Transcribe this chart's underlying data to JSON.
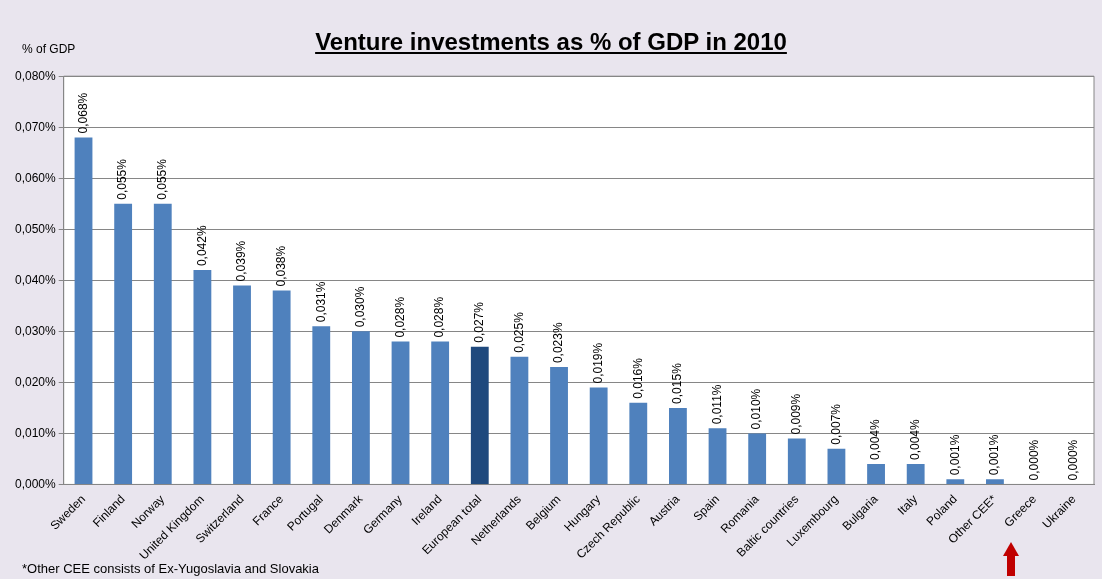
{
  "chart_data": {
    "type": "bar",
    "title": "Venture investments as % of GDP in 2010",
    "ylabel": "% of GDP",
    "annotations": [
      "*Other CEE consists of Ex-Yugoslavia  and Slovakia"
    ],
    "categories": [
      "Sweden",
      "Finland",
      "Norway",
      "United Kingdom",
      "Switzerland",
      "France",
      "Portugal",
      "Denmark",
      "Germany",
      "Ireland",
      "European total",
      "Netherlands",
      "Belgium",
      "Hungary",
      "Czech Republic",
      "Austria",
      "Spain",
      "Romania",
      "Baltic countries",
      "Luxembourg",
      "Bulgaria",
      "Italy",
      "Poland",
      "Other CEE*",
      "Greece",
      "Ukraine"
    ],
    "values": [
      0.068,
      0.055,
      0.055,
      0.042,
      0.039,
      0.038,
      0.031,
      0.03,
      0.028,
      0.028,
      0.027,
      0.025,
      0.023,
      0.019,
      0.016,
      0.015,
      0.011,
      0.01,
      0.009,
      0.007,
      0.004,
      0.004,
      0.001,
      0.001,
      0.0,
      0.0
    ],
    "value_labels": [
      "0,068%",
      "0,055%",
      "0,055%",
      "0,042%",
      "0,039%",
      "0,038%",
      "0,031%",
      "0,030%",
      "0,028%",
      "0,028%",
      "0,027%",
      "0,025%",
      "0,023%",
      "0,019%",
      "0,016%",
      "0,015%",
      "0,011%",
      "0,010%",
      "0,009%",
      "0,007%",
      "0,004%",
      "0,004%",
      "0,001%",
      "0,001%",
      "0,000%",
      "0,000%"
    ],
    "colors": [
      "#4f81bd",
      "#4f81bd",
      "#4f81bd",
      "#4f81bd",
      "#4f81bd",
      "#4f81bd",
      "#4f81bd",
      "#4f81bd",
      "#4f81bd",
      "#4f81bd",
      "#1f497d",
      "#4f81bd",
      "#4f81bd",
      "#4f81bd",
      "#4f81bd",
      "#4f81bd",
      "#4f81bd",
      "#4f81bd",
      "#4f81bd",
      "#4f81bd",
      "#4f81bd",
      "#4f81bd",
      "#4f81bd",
      "#4f81bd",
      "#4f81bd",
      "#4f81bd"
    ],
    "ylim": [
      0,
      0.08
    ],
    "yticks": [
      {
        "value": 0,
        "label": "0,000%"
      },
      {
        "value": 0.01,
        "label": "0,010%"
      },
      {
        "value": 0.02,
        "label": "0,020%"
      },
      {
        "value": 0.03,
        "label": "0,030%"
      },
      {
        "value": 0.04,
        "label": "0,040%"
      },
      {
        "value": 0.05,
        "label": "0,050%"
      },
      {
        "value": 0.06,
        "label": "0,060%"
      },
      {
        "value": 0.07,
        "label": "0,070%"
      },
      {
        "value": 0.08,
        "label": "0,080%"
      }
    ],
    "grid": "y",
    "legend": false
  }
}
